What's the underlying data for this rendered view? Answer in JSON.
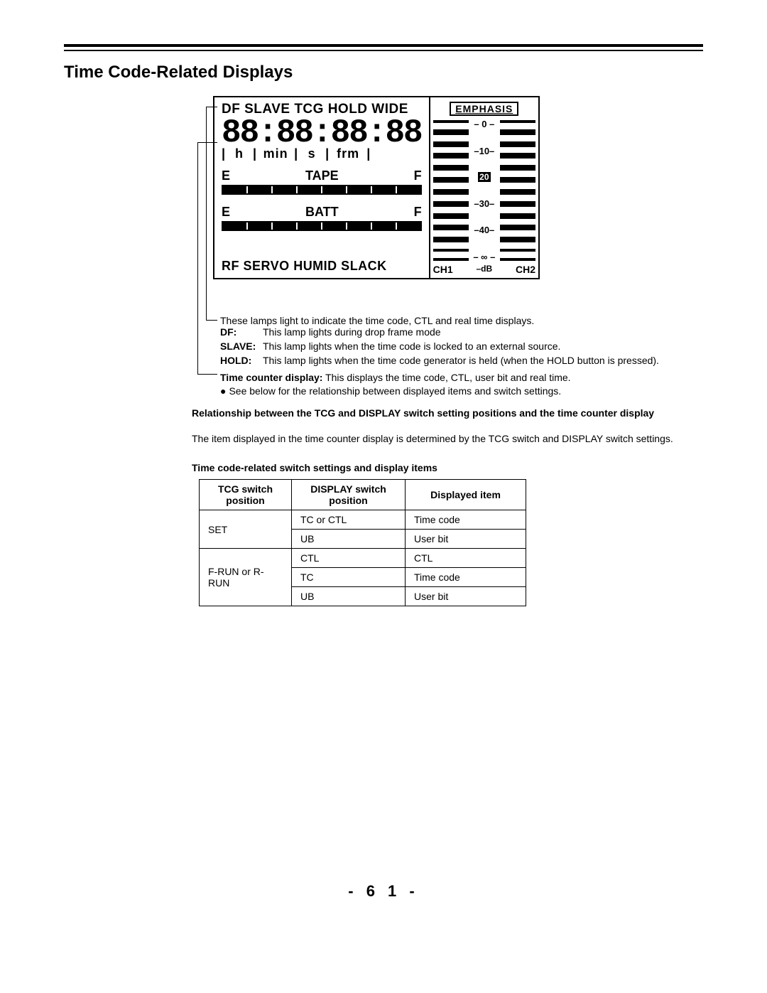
{
  "title": "Time Code-Related Displays",
  "display": {
    "topRow": "DF SLAVE TCG HOLD WIDE",
    "sevenSeg": "88:88:88:88",
    "timeLabels": {
      "bar1": "|",
      "h": "h",
      "bar2": "|",
      "min": "min",
      "bar3": "|",
      "s": "s",
      "bar4": "|",
      "frm": "frm",
      "bar5": "|"
    },
    "tape": {
      "left": "E",
      "label": "TAPE",
      "right": "F"
    },
    "batt": {
      "left": "E",
      "label": "BATT",
      "right": "F"
    },
    "bottomRow": "RF SERVO HUMID SLACK",
    "emphasis": "EMPHASIS",
    "scale": {
      "s0": "– 0 –",
      "s10": "–10–",
      "s20": "20",
      "s30": "–30–",
      "s40": "–40–",
      "sinf": "– ∞ –"
    },
    "vuBottom": {
      "ch1": "CH1",
      "mid": "–dB",
      "ch2": "CH2"
    }
  },
  "lampIntro": "These lamps light to indicate the time code, CTL and real time displays.",
  "lampDefs": [
    {
      "k": "DF:",
      "v": "This lamp lights during drop frame mode"
    },
    {
      "k": "SLAVE:",
      "v": "This lamp lights when the time code is locked to an external source."
    },
    {
      "k": "HOLD:",
      "v": "This lamp lights when the time code generator is held (when the HOLD button is pressed)."
    }
  ],
  "tcLine1a": "Time counter display:",
  "tcLine1b": "  This displays the time code, CTL, user bit and real time.",
  "tcLine2": "See below for the relationship between displayed items and switch settings.",
  "relHeading": "Relationship between the TCG and DISPLAY switch setting positions and the time counter display",
  "relText": "The item displayed in the time counter display is determined by the TCG switch and DISPLAY switch settings.",
  "tblHeading": "Time code-related switch settings and display items",
  "table": {
    "headers": {
      "c1": "TCG switch position",
      "c2": "DISPLAY switch position",
      "c3": "Displayed  item"
    },
    "rows": [
      {
        "c1": "SET",
        "c1rowspan": 2,
        "c2": "TC or CTL",
        "c3": "Time code"
      },
      {
        "c2": "UB",
        "c3": "User bit"
      },
      {
        "c1": "F-RUN or R-RUN",
        "c1rowspan": 3,
        "c2": "CTL",
        "c3": "CTL"
      },
      {
        "c2": "TC",
        "c3": "Time code"
      },
      {
        "c2": "UB",
        "c3": "User bit"
      }
    ]
  },
  "pageNum": "- 6 1 -"
}
